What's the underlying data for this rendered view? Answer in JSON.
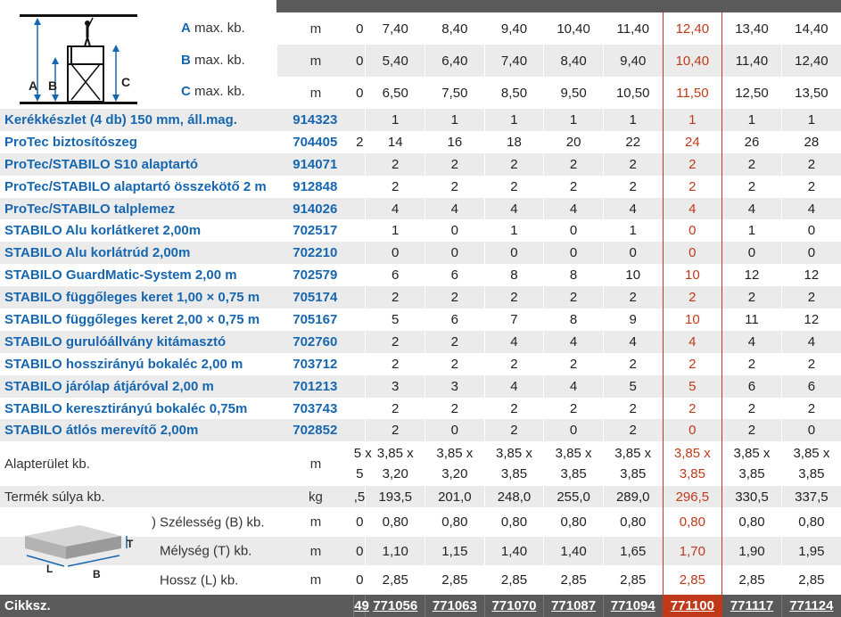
{
  "header_dims": [
    {
      "letter": "A",
      "label": "max. kb.",
      "unit": "m",
      "lead": "0",
      "values": [
        "7,40",
        "8,40",
        "9,40",
        "10,40",
        "11,40",
        "12,40",
        "13,40",
        "14,40"
      ]
    },
    {
      "letter": "B",
      "label": "max. kb.",
      "unit": "m",
      "lead": "0",
      "values": [
        "5,40",
        "6,40",
        "7,40",
        "8,40",
        "9,40",
        "10,40",
        "11,40",
        "12,40"
      ]
    },
    {
      "letter": "C",
      "label": "max. kb.",
      "unit": "m",
      "lead": "0",
      "values": [
        "6,50",
        "7,50",
        "8,50",
        "9,50",
        "10,50",
        "11,50",
        "12,50",
        "13,50"
      ]
    }
  ],
  "illustration": {
    "labels": [
      "A",
      "B",
      "C"
    ]
  },
  "parts": [
    {
      "name": "Kerékkészlet (4 db) 150 mm, áll.mag.",
      "code": "914323",
      "lead": "",
      "values": [
        "1",
        "1",
        "1",
        "1",
        "1",
        "1",
        "1",
        "1"
      ]
    },
    {
      "name": "ProTec biztosítószeg",
      "code": "704405",
      "lead": "2",
      "values": [
        "14",
        "16",
        "18",
        "20",
        "22",
        "24",
        "26",
        "28"
      ]
    },
    {
      "name": "ProTec/STABILO S10 alaptartó",
      "code": "914071",
      "lead": "",
      "values": [
        "2",
        "2",
        "2",
        "2",
        "2",
        "2",
        "2",
        "2"
      ]
    },
    {
      "name": "ProTec/STABILO alaptartó összekötő 2 m",
      "code": "912848",
      "lead": "",
      "values": [
        "2",
        "2",
        "2",
        "2",
        "2",
        "2",
        "2",
        "2"
      ]
    },
    {
      "name": "ProTec/STABILO talplemez",
      "code": "914026",
      "lead": "",
      "values": [
        "4",
        "4",
        "4",
        "4",
        "4",
        "4",
        "4",
        "4"
      ]
    },
    {
      "name": "STABILO Alu korlátkeret 2,00m",
      "code": "702517",
      "lead": "",
      "values": [
        "1",
        "0",
        "1",
        "0",
        "1",
        "0",
        "1",
        "0"
      ]
    },
    {
      "name": "STABILO Alu korlátrúd 2,00m",
      "code": "702210",
      "lead": "",
      "values": [
        "0",
        "0",
        "0",
        "0",
        "0",
        "0",
        "0",
        "0"
      ]
    },
    {
      "name": "STABILO GuardMatic-System 2,00 m",
      "code": "702579",
      "lead": "",
      "values": [
        "6",
        "6",
        "8",
        "8",
        "10",
        "10",
        "12",
        "12"
      ]
    },
    {
      "name": "STABILO függőleges keret 1,00 × 0,75 m",
      "code": "705174",
      "lead": "",
      "values": [
        "2",
        "2",
        "2",
        "2",
        "2",
        "2",
        "2",
        "2"
      ]
    },
    {
      "name": "STABILO függőleges keret 2,00 × 0,75 m",
      "code": "705167",
      "lead": "",
      "values": [
        "5",
        "6",
        "7",
        "8",
        "9",
        "10",
        "11",
        "12"
      ]
    },
    {
      "name": "STABILO gurulóállvány kitámasztó",
      "code": "702760",
      "lead": "",
      "values": [
        "2",
        "2",
        "4",
        "4",
        "4",
        "4",
        "4",
        "4"
      ]
    },
    {
      "name": "STABILO hosszirányú bokaléc 2,00 m",
      "code": "703712",
      "lead": "",
      "values": [
        "2",
        "2",
        "2",
        "2",
        "2",
        "2",
        "2",
        "2"
      ]
    },
    {
      "name": "STABILO járólap átjáróval 2,00 m",
      "code": "701213",
      "lead": "",
      "values": [
        "3",
        "3",
        "4",
        "4",
        "5",
        "5",
        "6",
        "6"
      ]
    },
    {
      "name": "STABILO keresztirányú bokaléc 0,75m",
      "code": "703743",
      "lead": "",
      "values": [
        "2",
        "2",
        "2",
        "2",
        "2",
        "2",
        "2",
        "2"
      ]
    },
    {
      "name": "STABILO átlós merevítő 2,00m",
      "code": "702852",
      "lead": "",
      "values": [
        "2",
        "0",
        "2",
        "0",
        "2",
        "0",
        "2",
        "0"
      ]
    }
  ],
  "area": {
    "label": "Alapterület kb.",
    "unit": "m",
    "lead_top": "5 x",
    "lead_bottom": "5",
    "top": [
      "3,85 x",
      "3,85 x",
      "3,85 x",
      "3,85 x",
      "3,85 x",
      "3,85 x",
      "3,85 x",
      "3,85 x"
    ],
    "bottom": [
      "3,20",
      "3,20",
      "3,85",
      "3,85",
      "3,85",
      "3,85",
      "3,85",
      "3,85"
    ]
  },
  "weight": {
    "label": "Termék súlya kb.",
    "unit": "kg",
    "lead": ",5",
    "values": [
      "193,5",
      "201,0",
      "248,0",
      "255,0",
      "289,0",
      "296,5",
      "330,5",
      "337,5"
    ]
  },
  "pack_dims": [
    {
      "label": "Szélesség (B) kb.",
      "prefix": ")",
      "unit": "m",
      "lead": "0",
      "values": [
        "0,80",
        "0,80",
        "0,80",
        "0,80",
        "0,80",
        "0,80",
        "0,80",
        "0,80"
      ]
    },
    {
      "label": "Mélység (T) kb.",
      "prefix": "",
      "unit": "m",
      "lead": "0",
      "values": [
        "1,10",
        "1,15",
        "1,40",
        "1,40",
        "1,65",
        "1,70",
        "1,90",
        "1,95"
      ]
    },
    {
      "label": "Hossz (L) kb.",
      "prefix": "",
      "unit": "m",
      "lead": "0",
      "values": [
        "2,85",
        "2,85",
        "2,85",
        "2,85",
        "2,85",
        "2,85",
        "2,85",
        "2,85"
      ]
    }
  ],
  "box_illustration": {
    "labels": [
      "T",
      "L",
      "B"
    ]
  },
  "footer": {
    "label": "Cikksz.",
    "lead": "49",
    "codes": [
      "771056",
      "771063",
      "771070",
      "771087",
      "771094",
      "771100",
      "771117",
      "771124"
    ]
  },
  "colors": {
    "link": "#1767b0",
    "highlight": "#c0391a",
    "header_bar": "#5a5a5a",
    "row_alt": "#ebebeb"
  },
  "highlight_column_index": 5
}
